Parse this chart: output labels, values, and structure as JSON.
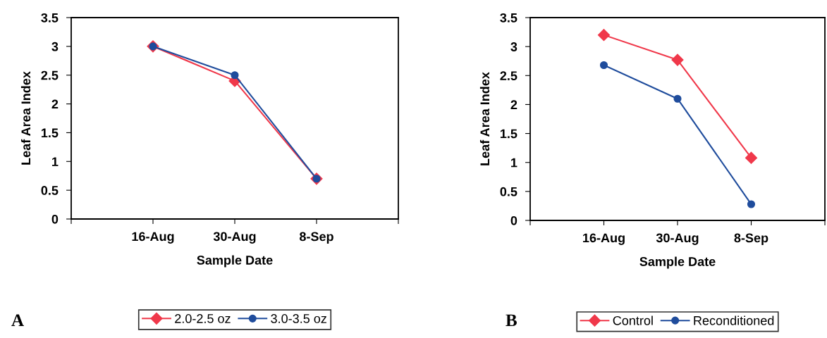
{
  "chart_data": [
    {
      "type": "line",
      "xlabel": "Sample Date",
      "ylabel": "Leaf Area Index",
      "categories": [
        null,
        "16-Aug",
        "30-Aug",
        "8-Sep",
        null
      ],
      "ylim": [
        0,
        3.5
      ],
      "yticks": [
        0,
        0.5,
        1,
        1.5,
        2,
        2.5,
        3,
        3.5
      ],
      "grid": false,
      "legend": "bottom",
      "annotations": [
        "A"
      ],
      "series": [
        {
          "name": "2.0-2.5 oz",
          "color": "#f0384a",
          "marker": "diamond",
          "values": [
            null,
            3.0,
            2.4,
            0.7,
            null
          ]
        },
        {
          "name": "3.0-3.5 oz",
          "color": "#1f4c9c",
          "marker": "circle",
          "values": [
            null,
            3.0,
            2.5,
            0.7,
            null
          ]
        }
      ]
    },
    {
      "type": "line",
      "xlabel": "Sample Date",
      "ylabel": "Leaf Area Index",
      "categories": [
        null,
        "16-Aug",
        "30-Aug",
        "8-Sep",
        null
      ],
      "ylim": [
        0,
        3.5
      ],
      "yticks": [
        0,
        0.5,
        1,
        1.5,
        2,
        2.5,
        3,
        3.5
      ],
      "grid": false,
      "legend": "bottom",
      "annotations": [
        "B"
      ],
      "series": [
        {
          "name": "Control",
          "color": "#f0384a",
          "marker": "diamond",
          "values": [
            null,
            3.2,
            2.77,
            1.08,
            null
          ]
        },
        {
          "name": "Reconditioned",
          "color": "#1f4c9c",
          "marker": "circle",
          "values": [
            null,
            2.68,
            2.1,
            0.28,
            null
          ]
        }
      ]
    }
  ]
}
